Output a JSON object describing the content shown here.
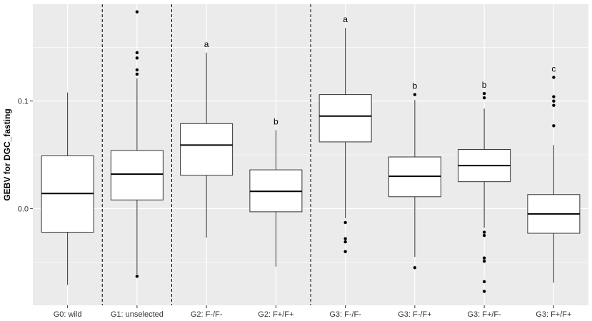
{
  "chart_data": {
    "type": "box",
    "title": "",
    "xlabel": "",
    "ylabel": "GEBV for DGC_fasting",
    "ylim": [
      -0.09,
      0.19
    ],
    "yticks": [
      0.0,
      0.1
    ],
    "ytick_labels": [
      "0.0",
      "0.1"
    ],
    "grid": true,
    "background_color": "#EBEBEB",
    "grid_color": "#FFFFFF",
    "box_fill": "#FFFFFF",
    "box_stroke": "#333333",
    "separators_after": [
      0,
      1,
      3
    ],
    "groups": [
      {
        "label": "G0: wild",
        "whisker_low": -0.071,
        "q1": -0.022,
        "median": 0.014,
        "q3": 0.049,
        "whisker_high": 0.108,
        "outliers": [],
        "letter": ""
      },
      {
        "label": "G1: unselected",
        "whisker_low": -0.061,
        "q1": 0.008,
        "median": 0.032,
        "q3": 0.054,
        "whisker_high": 0.121,
        "outliers": [
          -0.063,
          0.125,
          0.129,
          0.14,
          0.145,
          0.183
        ],
        "letter": ""
      },
      {
        "label": "G2: F-/F-",
        "whisker_low": -0.027,
        "q1": 0.031,
        "median": 0.059,
        "q3": 0.079,
        "whisker_high": 0.145,
        "outliers": [],
        "letter": "a"
      },
      {
        "label": "G2: F+/F+",
        "whisker_low": -0.054,
        "q1": -0.003,
        "median": 0.016,
        "q3": 0.036,
        "whisker_high": 0.073,
        "outliers": [],
        "letter": "b"
      },
      {
        "label": "G3: F-/F-",
        "whisker_low": -0.009,
        "q1": 0.062,
        "median": 0.086,
        "q3": 0.106,
        "whisker_high": 0.168,
        "outliers": [
          -0.013,
          -0.028,
          -0.031,
          -0.04
        ],
        "letter": "a"
      },
      {
        "label": "G3: F-/F+",
        "whisker_low": -0.045,
        "q1": 0.011,
        "median": 0.03,
        "q3": 0.048,
        "whisker_high": 0.101,
        "outliers": [
          -0.055,
          0.106
        ],
        "letter": "b"
      },
      {
        "label": "G3: F+/F-",
        "whisker_low": -0.018,
        "q1": 0.025,
        "median": 0.04,
        "q3": 0.055,
        "whisker_high": 0.093,
        "outliers": [
          -0.022,
          -0.025,
          -0.046,
          -0.049,
          -0.068,
          -0.077,
          0.103,
          0.107
        ],
        "letter": "b"
      },
      {
        "label": "G3: F+/F+",
        "whisker_low": -0.069,
        "q1": -0.023,
        "median": -0.005,
        "q3": 0.013,
        "whisker_high": 0.059,
        "outliers": [
          0.077,
          0.096,
          0.1,
          0.104,
          0.122
        ],
        "letter": "c"
      }
    ]
  }
}
